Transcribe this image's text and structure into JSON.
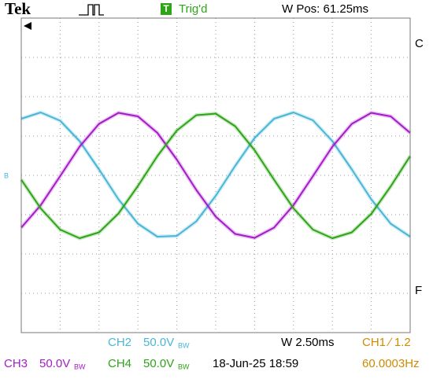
{
  "chart_data": {
    "type": "line",
    "x": [
      0,
      0.5,
      1,
      1.5,
      2,
      2.5,
      3,
      3.5,
      4,
      4.5,
      5,
      5.5,
      6,
      6.5,
      7,
      7.5,
      8,
      8.5,
      9,
      9.5,
      10
    ],
    "xlim": [
      0,
      10
    ],
    "ylim": [
      -4,
      4
    ],
    "grid": true,
    "series": [
      {
        "color": "#4ab6d6",
        "values": [
          1.44,
          1.6,
          1.39,
          0.87,
          0.15,
          -0.61,
          -1.23,
          -1.56,
          -1.54,
          -1.17,
          -0.52,
          0.24,
          0.95,
          1.44,
          1.6,
          1.4,
          0.87,
          0.15,
          -0.61,
          -1.23,
          -1.56
        ]
      },
      {
        "color": "#a41cc8",
        "values": [
          -1.33,
          -0.76,
          -0.02,
          0.73,
          1.31,
          1.59,
          1.5,
          1.08,
          0.4,
          -0.37,
          -1.05,
          -1.49,
          -1.59,
          -1.33,
          -0.76,
          -0.02,
          0.73,
          1.31,
          1.59,
          1.5,
          1.08
        ]
      },
      {
        "color": "#2ea418",
        "values": [
          -0.11,
          -0.84,
          -1.38,
          -1.6,
          -1.45,
          -0.97,
          -0.27,
          0.49,
          1.14,
          1.53,
          1.57,
          1.25,
          0.64,
          -0.11,
          -0.84,
          -1.38,
          -1.6,
          -1.45,
          -0.98,
          -0.28,
          0.49
        ]
      }
    ]
  },
  "header": {
    "brand": "Tek",
    "trigger": "Trig'd",
    "trigger_icon": "T",
    "position": "W Pos: 61.25ms"
  },
  "side": {
    "ch_marker": "B",
    "right_top": "C",
    "right_bottom": "F"
  },
  "footer": {
    "ch2": {
      "name": "CH2",
      "scale": "50.0V",
      "bw": "BW"
    },
    "timebase": "W 2.50ms",
    "trigger": "CH1 ∕ 1.2",
    "ch3": {
      "name": "CH3",
      "scale": "50.0V",
      "bw": "BW"
    },
    "ch4": {
      "name": "CH4",
      "scale": "50.0V",
      "bw": "BW"
    },
    "date": "18-Jun-25 18:59",
    "frequency": "60.0003Hz"
  }
}
